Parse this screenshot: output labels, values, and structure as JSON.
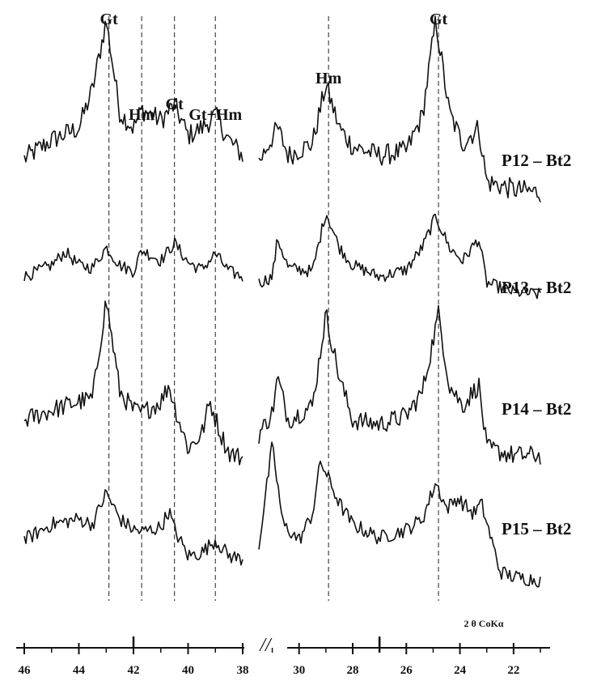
{
  "chart_data": {
    "type": "line",
    "x_axis_title": "2 θ CoKα",
    "panels": [
      {
        "name": "left",
        "x_range": [
          46,
          38
        ],
        "ticks": [
          46,
          44,
          42,
          40,
          38
        ]
      },
      {
        "name": "right",
        "x_range": [
          31.5,
          21
        ],
        "ticks": [
          30,
          28,
          26,
          24,
          22
        ]
      }
    ],
    "peak_markers": [
      {
        "label": "Gt",
        "x": 42.9,
        "panel": "left"
      },
      {
        "label": "Hm",
        "x": 41.7,
        "panel": "left"
      },
      {
        "label": "Gt",
        "x": 40.5,
        "panel": "left"
      },
      {
        "label": "Gt+Hm",
        "x": 39.0,
        "panel": "left"
      },
      {
        "label": "Hm",
        "x": 28.9,
        "panel": "right"
      },
      {
        "label": "Gt",
        "x": 24.8,
        "panel": "right"
      }
    ],
    "series": [
      {
        "name": "P12 – Bt2",
        "left": [
          [
            46,
            0.1
          ],
          [
            45,
            0.22
          ],
          [
            44,
            0.3
          ],
          [
            43.5,
            0.55
          ],
          [
            43,
            1.0
          ],
          [
            42.5,
            0.4
          ],
          [
            42,
            0.3
          ],
          [
            41.7,
            0.42
          ],
          [
            41,
            0.35
          ],
          [
            40.5,
            0.45
          ],
          [
            40,
            0.25
          ],
          [
            39.5,
            0.3
          ],
          [
            39,
            0.38
          ],
          [
            38.5,
            0.22
          ],
          [
            38,
            0.12
          ]
        ],
        "right": [
          [
            31.5,
            0.08
          ],
          [
            30.8,
            0.3
          ],
          [
            30.4,
            0.12
          ],
          [
            29.5,
            0.2
          ],
          [
            29,
            0.58
          ],
          [
            28.5,
            0.3
          ],
          [
            28,
            0.18
          ],
          [
            27,
            0.12
          ],
          [
            26,
            0.15
          ],
          [
            25.4,
            0.38
          ],
          [
            24.9,
            1.0
          ],
          [
            24.4,
            0.4
          ],
          [
            23.9,
            0.2
          ],
          [
            23.3,
            0.3
          ],
          [
            23,
            -0.05
          ],
          [
            22,
            -0.1
          ],
          [
            21,
            -0.12
          ]
        ]
      },
      {
        "name": "P13 – Bt2",
        "left": [
          [
            46,
            0.12
          ],
          [
            45,
            0.25
          ],
          [
            44.5,
            0.4
          ],
          [
            44,
            0.25
          ],
          [
            43.5,
            0.22
          ],
          [
            43,
            0.45
          ],
          [
            42.5,
            0.25
          ],
          [
            42,
            0.18
          ],
          [
            41.7,
            0.42
          ],
          [
            41,
            0.3
          ],
          [
            40.5,
            0.5
          ],
          [
            40,
            0.28
          ],
          [
            39.5,
            0.2
          ],
          [
            39,
            0.38
          ],
          [
            38.5,
            0.18
          ],
          [
            38,
            0.12
          ]
        ],
        "right": [
          [
            31.5,
            0.05
          ],
          [
            31,
            0.12
          ],
          [
            30.8,
            0.55
          ],
          [
            30.4,
            0.22
          ],
          [
            29.5,
            0.18
          ],
          [
            29,
            0.85
          ],
          [
            28.5,
            0.45
          ],
          [
            28,
            0.25
          ],
          [
            27,
            0.12
          ],
          [
            26,
            0.2
          ],
          [
            25.4,
            0.45
          ],
          [
            24.9,
            0.8
          ],
          [
            24.4,
            0.45
          ],
          [
            23.9,
            0.3
          ],
          [
            23.3,
            0.55
          ],
          [
            23,
            0.05
          ],
          [
            22,
            -0.05
          ],
          [
            21,
            -0.08
          ]
        ]
      },
      {
        "name": "P14 – Bt2",
        "left": [
          [
            46,
            0.15
          ],
          [
            45,
            0.22
          ],
          [
            44,
            0.28
          ],
          [
            43.5,
            0.3
          ],
          [
            43,
            1.0
          ],
          [
            42.5,
            0.35
          ],
          [
            42,
            0.22
          ],
          [
            41.7,
            0.2
          ],
          [
            41,
            0.28
          ],
          [
            40.7,
            0.4
          ],
          [
            40.5,
            0.25
          ],
          [
            40,
            -0.05
          ],
          [
            39.5,
            0.05
          ],
          [
            39.2,
            0.28
          ],
          [
            38.8,
            0.05
          ],
          [
            38.5,
            -0.08
          ],
          [
            38,
            -0.12
          ]
        ],
        "right": [
          [
            31.5,
            0.05
          ],
          [
            31,
            0.2
          ],
          [
            30.8,
            0.45
          ],
          [
            30.4,
            0.15
          ],
          [
            29.5,
            0.25
          ],
          [
            29,
            0.9
          ],
          [
            28.5,
            0.45
          ],
          [
            28,
            0.15
          ],
          [
            27,
            0.12
          ],
          [
            26,
            0.18
          ],
          [
            25.4,
            0.35
          ],
          [
            24.8,
            0.9
          ],
          [
            24.4,
            0.4
          ],
          [
            23.9,
            0.25
          ],
          [
            23.3,
            0.4
          ],
          [
            23,
            -0.05
          ],
          [
            22,
            -0.1
          ],
          [
            21,
            -0.1
          ]
        ]
      },
      {
        "name": "P15 – Bt2",
        "left": [
          [
            46,
            0.1
          ],
          [
            45,
            0.25
          ],
          [
            44,
            0.3
          ],
          [
            43.5,
            0.25
          ],
          [
            43,
            0.55
          ],
          [
            42.5,
            0.3
          ],
          [
            42,
            0.2
          ],
          [
            41.7,
            0.18
          ],
          [
            41,
            0.22
          ],
          [
            40.7,
            0.38
          ],
          [
            40.5,
            0.2
          ],
          [
            40,
            -0.05
          ],
          [
            39.5,
            -0.02
          ],
          [
            39,
            0.1
          ],
          [
            38.5,
            -0.05
          ],
          [
            38,
            -0.08
          ]
        ],
        "right": [
          [
            31.5,
            0.05
          ],
          [
            31,
            1.0
          ],
          [
            30.6,
            0.25
          ],
          [
            30,
            0.1
          ],
          [
            29.5,
            0.35
          ],
          [
            29.2,
            0.85
          ],
          [
            28.5,
            0.45
          ],
          [
            28,
            0.25
          ],
          [
            27,
            0.12
          ],
          [
            26,
            0.2
          ],
          [
            25.4,
            0.3
          ],
          [
            24.9,
            0.65
          ],
          [
            24.5,
            0.4
          ],
          [
            24.1,
            0.5
          ],
          [
            23.5,
            0.35
          ],
          [
            23.2,
            0.45
          ],
          [
            22.5,
            -0.2
          ],
          [
            22,
            -0.25
          ],
          [
            21,
            -0.28
          ]
        ]
      }
    ]
  },
  "labels": {
    "break_mark": "//",
    "axis_title": "2 θ CoKα"
  }
}
